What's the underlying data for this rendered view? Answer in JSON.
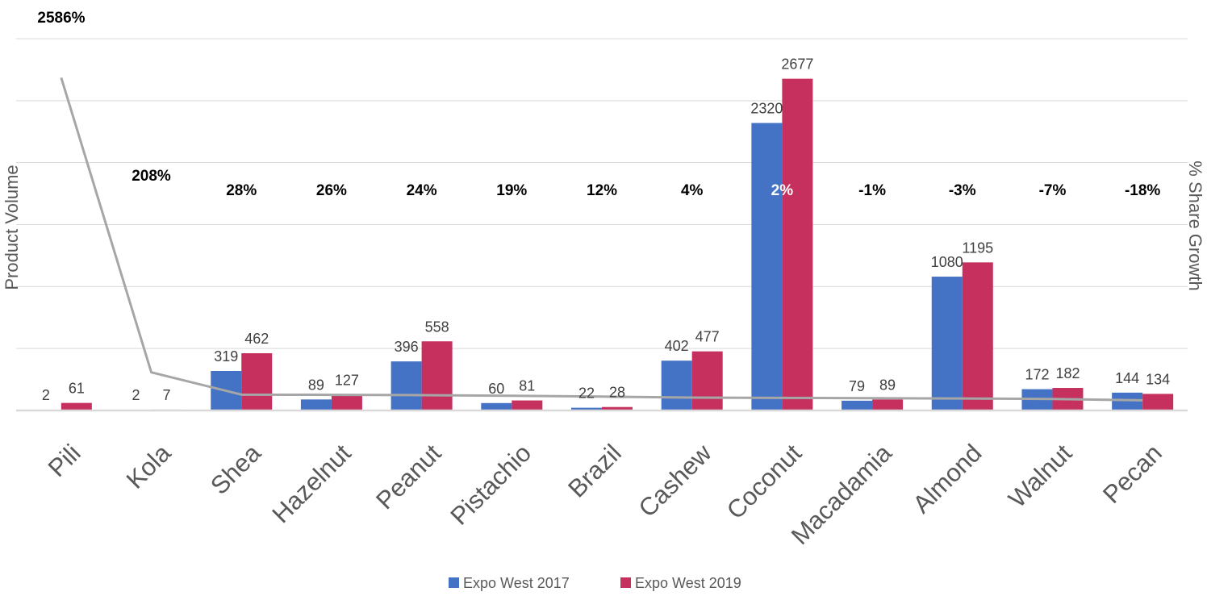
{
  "chart_data": {
    "type": "bar",
    "categories": [
      "Pili",
      "Kola",
      "Shea",
      "Hazelnut",
      "Peanut",
      "Pistachio",
      "Brazil",
      "Cashew",
      "Coconut",
      "Macadamia",
      "Almond",
      "Walnut",
      "Pecan"
    ],
    "series": [
      {
        "name": "Expo West 2017",
        "color": "#4472C4",
        "values": [
          2,
          2,
          319,
          89,
          396,
          60,
          22,
          402,
          2320,
          79,
          1080,
          172,
          144
        ]
      },
      {
        "name": "Expo West 2019",
        "color": "#C5305E",
        "values": [
          61,
          7,
          462,
          127,
          558,
          81,
          28,
          477,
          2677,
          89,
          1195,
          182,
          134
        ]
      }
    ],
    "line_series": {
      "color": "#A6A6A6",
      "values": [
        2586,
        208,
        28,
        26,
        24,
        19,
        12,
        4,
        2,
        -1,
        -3,
        -7,
        -18
      ],
      "labels": [
        "2586%",
        "208%",
        "28%",
        "26%",
        "24%",
        "19%",
        "12%",
        "4%",
        "2%",
        "-1%",
        "-3%",
        "-7%",
        "-18%"
      ]
    },
    "ylabel": "Product Volume",
    "y2label": "% Share Growth",
    "ylim": [
      0,
      3000
    ],
    "y2lim": [
      -100,
      2900
    ],
    "grid": true,
    "legend": "bottom"
  }
}
